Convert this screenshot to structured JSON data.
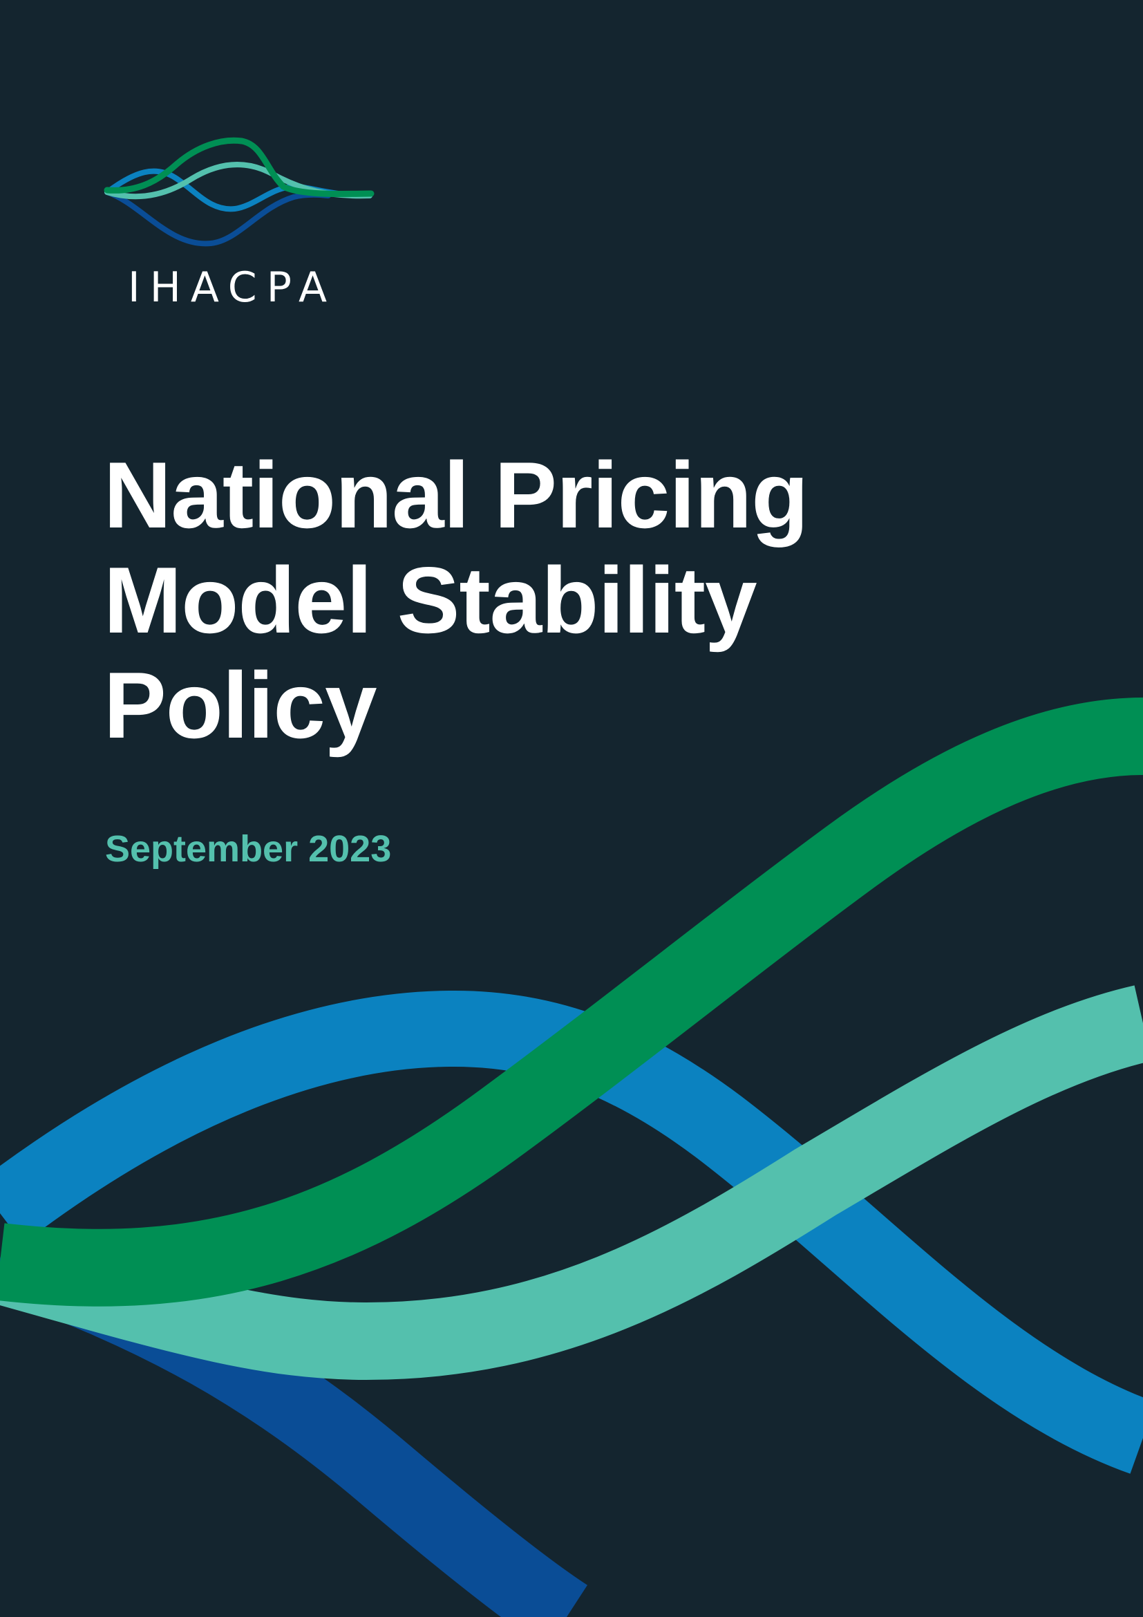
{
  "logo": {
    "wordmark": "IHACPA",
    "colors": [
      "#0a4d96",
      "#0b82c0",
      "#54c0ad",
      "#008f54"
    ]
  },
  "title_lines": [
    "National Pricing",
    "Model Stability",
    "Policy"
  ],
  "date": "September 2023",
  "background": {
    "color": "#14252f",
    "wave_colors": [
      "#0a4d96",
      "#0b82c0",
      "#54c0ad",
      "#008f54"
    ]
  }
}
